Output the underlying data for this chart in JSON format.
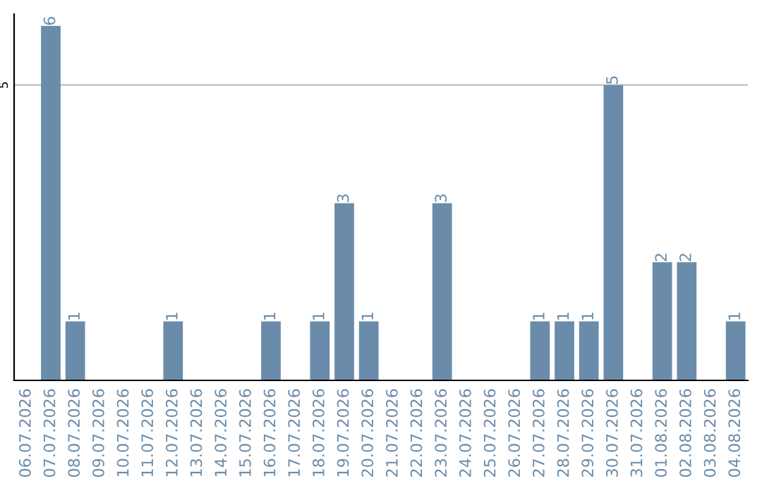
{
  "chart_data": {
    "type": "bar",
    "categories": [
      "06.07.2026",
      "07.07.2026",
      "08.07.2026",
      "09.07.2026",
      "10.07.2026",
      "11.07.2026",
      "12.07.2026",
      "13.07.2026",
      "14.07.2026",
      "15.07.2026",
      "16.07.2026",
      "17.07.2026",
      "18.07.2026",
      "19.07.2026",
      "20.07.2026",
      "21.07.2026",
      "22.07.2026",
      "23.07.2026",
      "24.07.2026",
      "25.07.2026",
      "26.07.2026",
      "27.07.2026",
      "28.07.2026",
      "29.07.2026",
      "30.07.2026",
      "31.07.2026",
      "01.08.2026",
      "02.08.2026",
      "03.08.2026",
      "04.08.2026"
    ],
    "values": [
      0,
      6,
      1,
      0,
      0,
      0,
      1,
      0,
      0,
      0,
      1,
      0,
      1,
      3,
      1,
      0,
      0,
      3,
      0,
      0,
      0,
      1,
      1,
      1,
      5,
      0,
      2,
      2,
      0,
      1
    ],
    "value_labels": [
      null,
      "6",
      "1",
      null,
      null,
      null,
      "1",
      null,
      null,
      null,
      "1",
      null,
      "1",
      "3",
      "1",
      null,
      null,
      "3",
      null,
      null,
      null,
      "1",
      "1",
      "1",
      "5",
      null,
      "2",
      "2",
      null,
      "1"
    ],
    "color": "#6a8caa",
    "ylim": [
      0,
      6.2
    ],
    "yticks": [
      5
    ],
    "grid": "y"
  }
}
